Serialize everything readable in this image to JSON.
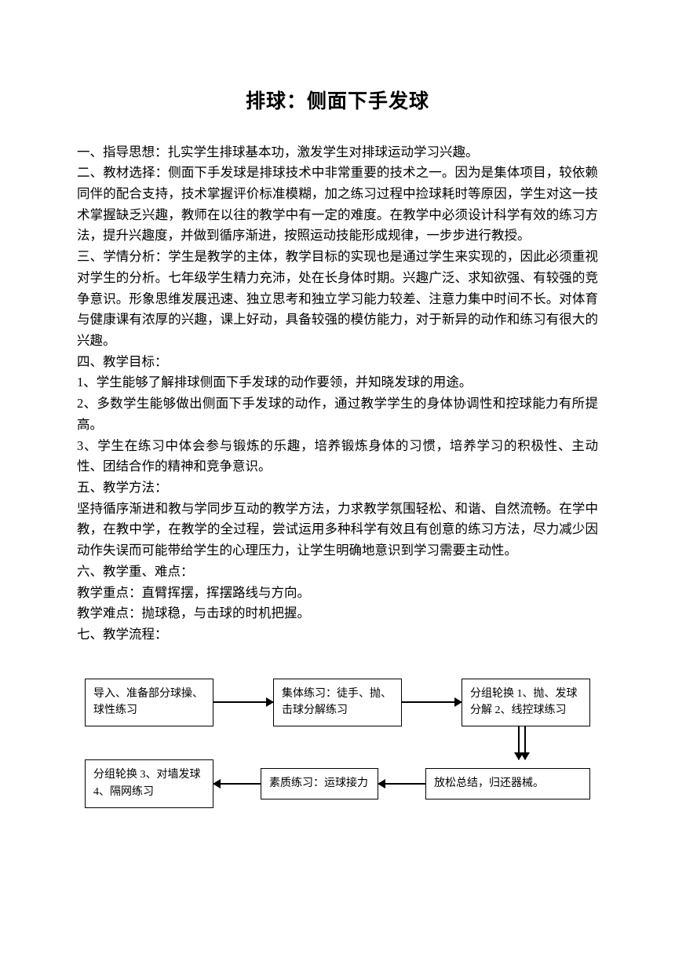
{
  "title": "排球：侧面下手发球",
  "sections": {
    "s1": "一、指导思想：扎实学生排球基本功，激发学生对排球运动学习兴趣。",
    "s2": "二、教材选择：侧面下手发球是排球技术中非常重要的技术之一。因为是集体项目，较依赖同伴的配合支持，技术掌握评价标准模糊，加之练习过程中捡球耗时等原因，学生对这一技术掌握缺乏兴趣，教师在以往的教学中有一定的难度。在教学中必须设计科学有效的练习方法，提升兴趣度，并做到循序渐进，按照运动技能形成规律，一步步进行教授。",
    "s3": "三、学情分析：学生是教学的主体，教学目标的实现也是通过学生来实现的，因此必须重视对学生的分析。七年级学生精力充沛，处在长身体时期。兴趣广泛、求知欲强、有较强的竞争意识。形象思维发展迅速、独立思考和独立学习能力较差、注意力集中时间不长。对体育与健康课有浓厚的兴趣，课上好动，具备较强的模仿能力，对于新异的动作和练习有很大的兴趣。",
    "s4_head": "四、教学目标：",
    "s4_1": "1、学生能够了解排球侧面下手发球的动作要领，并知晓发球的用途。",
    "s4_2": "2、多数学生能够做出侧面下手发球的动作，通过教学学生的身体协调性和控球能力有所提高。",
    "s4_3": "3、学生在练习中体会参与锻炼的乐趣，培养锻炼身体的习惯，培养学习的积极性、主动性、团结合作的精神和竞争意识。",
    "s5_head": "五、教学方法：",
    "s5_body": "坚持循序渐进和教与学同步互动的教学方法，力求教学氛围轻松、和谐、自然流畅。在学中教，在教中学，在教学的全过程，尝试运用多种科学有效且有创意的练习方法，尽力减少因动作失误而可能带给学生的心理压力，让学生明确地意识到学习需要主动性。",
    "s6_head": "六、教学重、难点：",
    "s6_1": "教学重点：直臂挥摆，挥摆路线与方向。",
    "s6_2": "教学难点：抛球稳，与击球的时机把握。",
    "s7_head": "七、教学流程："
  },
  "flow": {
    "b1": "导入、准备部分球操、球性练习",
    "b2": "集体练习：徒手、抛、击球分解练习",
    "b3": "分组轮换 1、抛、发球分解 2、线控球练习",
    "b4": "放松总结，归还器械。",
    "b5": "素质练习：运球接力",
    "b6": "分组轮换 3、对墙发球 4、隔网练习"
  },
  "style": {
    "text_color": "#000000",
    "bg_color": "#ffffff",
    "title_fontsize": 25,
    "body_fontsize": 16.5,
    "flow_fontsize": 14,
    "flow_border_color": "#000000"
  }
}
